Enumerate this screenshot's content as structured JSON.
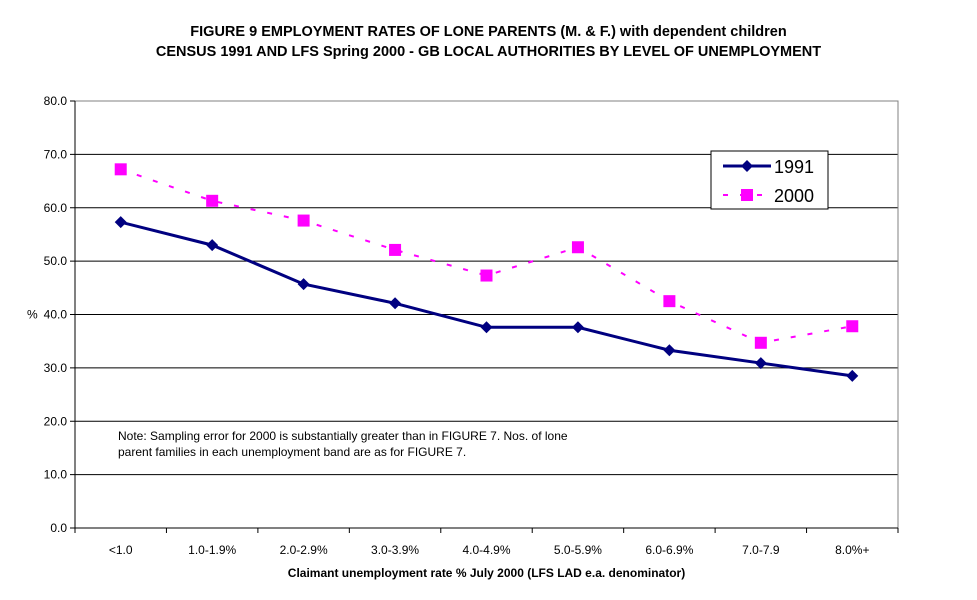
{
  "chart_data": {
    "type": "line",
    "title": "FIGURE 9  EMPLOYMENT RATES OF LONE PARENTS (M. & F.) with dependent children",
    "subtitle": "CENSUS 1991 AND LFS Spring 2000 - GB LOCAL AUTHORITIES BY LEVEL OF UNEMPLOYMENT",
    "xlabel": "Claimant unemployment rate % July 2000 (LFS LAD e.a. denominator)",
    "ylabel": "%",
    "ylim": [
      0,
      80
    ],
    "yticks": [
      "0.0",
      "10.0",
      "20.0",
      "30.0",
      "40.0",
      "50.0",
      "60.0",
      "70.0",
      "80.0"
    ],
    "ytick_values": [
      0,
      10,
      20,
      30,
      40,
      50,
      60,
      70,
      80
    ],
    "grid": true,
    "legend_position": "top-right",
    "categories": [
      "<1.0",
      "1.0-1.9%",
      "2.0-2.9%",
      "3.0-3.9%",
      "4.0-4.9%",
      "5.0-5.9%",
      "6.0-6.9%",
      "7.0-7.9",
      "8.0%+"
    ],
    "series": [
      {
        "name": "1991",
        "color": "#000080",
        "marker": "diamond",
        "style": "solid",
        "values": [
          57.3,
          53.0,
          45.7,
          42.1,
          37.6,
          37.6,
          33.3,
          30.9,
          28.5
        ]
      },
      {
        "name": "2000",
        "color": "#FF00FF",
        "marker": "square",
        "style": "dotted",
        "values": [
          67.2,
          61.3,
          57.6,
          52.1,
          47.3,
          52.6,
          42.5,
          34.7,
          37.8
        ]
      }
    ],
    "annotations": [
      "Note: Sampling error for 2000 is substantially greater than in FIGURE 7.  Nos. of lone",
      "parent families in each unemployment band are as for FIGURE 7."
    ]
  }
}
